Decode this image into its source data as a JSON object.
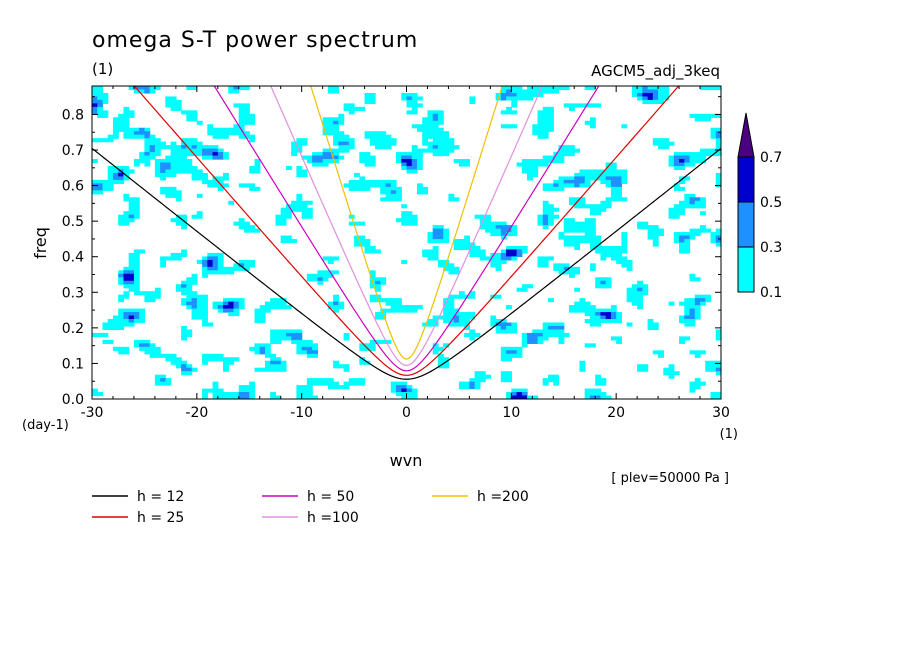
{
  "title": "omega S-T power spectrum",
  "subtitle_left": "(1)",
  "subtitle_right": "AGCM5_adj_3keq",
  "footnote": "[ plev=50000 Pa ]",
  "chart_data": {
    "type": "heatmap",
    "title": "omega S-T power spectrum",
    "xlabel": "wvn",
    "ylabel": "freq",
    "x_unit": "(1)",
    "y_unit": "(day-1)",
    "xlim": [
      -30,
      30
    ],
    "ylim": [
      0,
      0.88
    ],
    "x_ticks": [
      -30,
      -20,
      -10,
      0,
      10,
      20,
      30
    ],
    "x_tick_labels": [
      "-30",
      "-20",
      "-10",
      "0",
      "10",
      "20",
      "30"
    ],
    "y_ticks": [
      0,
      0.1,
      0.2,
      0.3,
      0.4,
      0.5,
      0.6,
      0.7,
      0.8
    ],
    "y_tick_labels": [
      "0.0",
      "0.1",
      "0.2",
      "0.3",
      "0.4",
      "0.5",
      "0.6",
      "0.7",
      "0.8"
    ],
    "colorbar": {
      "levels": [
        0.1,
        0.3,
        0.5,
        0.7
      ],
      "level_labels": [
        "0.1",
        "0.3",
        "0.5",
        "0.7"
      ],
      "colors": [
        "#00ffff",
        "#1e90ff",
        "#0000cd",
        "#4b0082"
      ]
    },
    "series": [
      {
        "name": "h = 12",
        "color": "#000000",
        "h": 12
      },
      {
        "name": "h = 25",
        "color": "#e00000",
        "h": 25
      },
      {
        "name": "h = 50",
        "color": "#d000c0",
        "h": 50
      },
      {
        "name": "h =100",
        "color": "#e090e0",
        "h": 100
      },
      {
        "name": "h =200",
        "color": "#f0c000",
        "h": 200
      }
    ],
    "grid": false
  }
}
